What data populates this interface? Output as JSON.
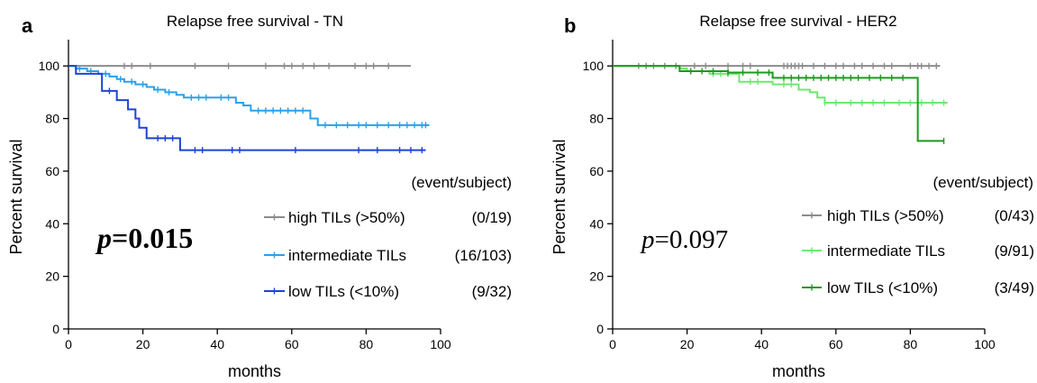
{
  "chart_data": [
    {
      "type": "line",
      "panel_label": "a",
      "title": "Relapse free survival - TN",
      "xlabel": "months",
      "ylabel": "Percent survival",
      "xlim": [
        0,
        100
      ],
      "ylim": [
        0,
        110
      ],
      "x_ticks": [
        "0",
        "20",
        "40",
        "60",
        "80",
        "100"
      ],
      "y_ticks": [
        "0",
        "20",
        "40",
        "60",
        "80",
        "100"
      ],
      "legend_header": "(event/subject)",
      "p_label": "p",
      "p_value": "=0.015",
      "series": [
        {
          "name": "high TILs (>50%)",
          "counts": "(0/19)",
          "color": "#8c8c8c",
          "steps": [
            [
              0,
              100
            ],
            [
              92,
              100
            ]
          ],
          "censor_x": [
            15,
            17,
            22,
            34,
            43,
            53,
            58,
            60,
            63,
            66,
            70,
            77,
            80,
            82,
            86
          ]
        },
        {
          "name": "intermediate TILs",
          "counts": "(16/103)",
          "color": "#2aa1ea",
          "steps": [
            [
              0,
              100
            ],
            [
              2,
              99
            ],
            [
              5,
              98
            ],
            [
              8,
              97
            ],
            [
              11,
              96
            ],
            [
              13,
              95
            ],
            [
              15,
              94
            ],
            [
              18,
              93
            ],
            [
              21,
              92
            ],
            [
              23,
              91
            ],
            [
              26,
              90
            ],
            [
              29,
              89
            ],
            [
              31,
              88
            ],
            [
              45,
              86
            ],
            [
              47,
              85
            ],
            [
              49,
              83
            ],
            [
              65,
              80
            ],
            [
              67,
              77.5
            ],
            [
              97,
              77.5
            ]
          ],
          "censor_x": [
            3,
            6,
            10,
            14,
            17,
            20,
            24,
            27,
            33,
            35,
            37,
            41,
            43,
            51,
            53,
            55,
            57,
            59,
            61,
            63,
            69,
            72,
            75,
            78,
            80,
            83,
            86,
            89,
            91,
            93,
            95,
            96
          ]
        },
        {
          "name": "low TILs (<10%)",
          "counts": "(9/32)",
          "color": "#1c44d6",
          "steps": [
            [
              0,
              100
            ],
            [
              2,
              97
            ],
            [
              9,
              94
            ],
            [
              9,
              90.5
            ],
            [
              13,
              87
            ],
            [
              16,
              83.5
            ],
            [
              18,
              80
            ],
            [
              19,
              76.5
            ],
            [
              21,
              72.5
            ],
            [
              30,
              68
            ],
            [
              96,
              68
            ]
          ],
          "censor_x": [
            11,
            24,
            26,
            28,
            34,
            36,
            44,
            46,
            61,
            78,
            83,
            89,
            92,
            95
          ]
        }
      ]
    },
    {
      "type": "line",
      "panel_label": "b",
      "title": "Relapse free survival - HER2",
      "xlabel": "months",
      "ylabel": "Percent survival",
      "xlim": [
        0,
        100
      ],
      "ylim": [
        0,
        110
      ],
      "x_ticks": [
        "0",
        "20",
        "40",
        "60",
        "80",
        "100"
      ],
      "y_ticks": [
        "0",
        "20",
        "40",
        "60",
        "80",
        "100"
      ],
      "legend_header": "(event/subject)",
      "p_label": "p",
      "p_value": "=0.097",
      "series": [
        {
          "name": "high TILs (>50%)",
          "counts": "(0/43)",
          "color": "#8c8c8c",
          "steps": [
            [
              0,
              100
            ],
            [
              88,
              100
            ]
          ],
          "censor_x": [
            7,
            9,
            11,
            14,
            17,
            22,
            25,
            31,
            35,
            37,
            46,
            47,
            48,
            49,
            50,
            51,
            54,
            57,
            60,
            62,
            65,
            67,
            70,
            73,
            75,
            80,
            82,
            83,
            85,
            87
          ]
        },
        {
          "name": "intermediate TILs",
          "counts": "(9/91)",
          "color": "#6fe86f",
          "steps": [
            [
              0,
              100
            ],
            [
              18,
              99
            ],
            [
              20,
              98
            ],
            [
              26,
              97
            ],
            [
              34,
              94
            ],
            [
              43,
              93
            ],
            [
              50,
              91
            ],
            [
              53,
              90
            ],
            [
              55,
              88
            ],
            [
              57,
              86
            ],
            [
              90,
              86
            ]
          ],
          "censor_x": [
            27,
            29,
            31,
            37,
            39,
            46,
            48,
            57,
            60,
            64,
            67,
            70,
            73,
            77,
            80,
            83,
            86,
            89
          ]
        },
        {
          "name": "low TILs (<10%)",
          "counts": "(3/49)",
          "color": "#1e9a1e",
          "steps": [
            [
              0,
              100
            ],
            [
              18,
              98
            ],
            [
              31,
              97.5
            ],
            [
              43,
              95.5
            ],
            [
              82,
              95.5
            ],
            [
              82,
              71.5
            ],
            [
              89,
              71.5
            ]
          ],
          "censor_x": [
            21,
            24,
            27,
            31,
            35,
            39,
            42,
            46,
            48,
            50,
            52,
            54,
            56,
            58,
            60,
            62,
            64,
            66,
            69,
            72,
            75,
            78,
            89
          ]
        }
      ]
    }
  ]
}
